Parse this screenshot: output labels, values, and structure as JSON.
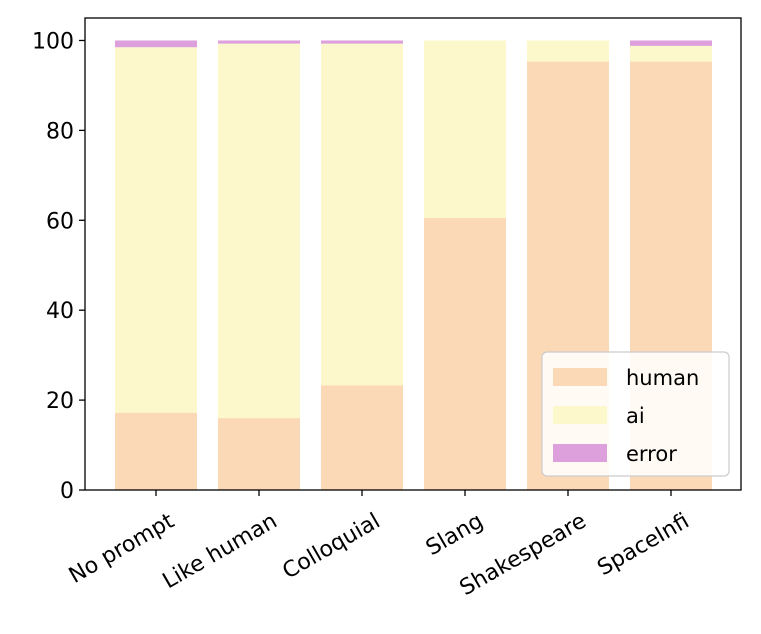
{
  "chart_data": {
    "type": "bar",
    "stacked": true,
    "categories": [
      "No prompt",
      "Like human",
      "Colloquial",
      "Slang",
      "Shakespeare",
      "SpaceInfi"
    ],
    "series": [
      {
        "name": "human",
        "color": "#fcd9b6",
        "values": [
          17.2,
          16.0,
          23.3,
          60.5,
          95.3,
          95.3
        ]
      },
      {
        "name": "ai",
        "color": "#fdf8cb",
        "values": [
          81.3,
          83.3,
          76.0,
          39.5,
          4.7,
          3.5
        ]
      },
      {
        "name": "error",
        "color": "#dda0dd",
        "values": [
          1.5,
          0.7,
          0.7,
          0.0,
          0.0,
          1.2
        ]
      }
    ],
    "ylim": [
      0,
      105
    ],
    "yticks": [
      0,
      20,
      40,
      60,
      80,
      100
    ],
    "title": "",
    "xlabel": "",
    "ylabel": "",
    "legend_position": "lower-right"
  }
}
